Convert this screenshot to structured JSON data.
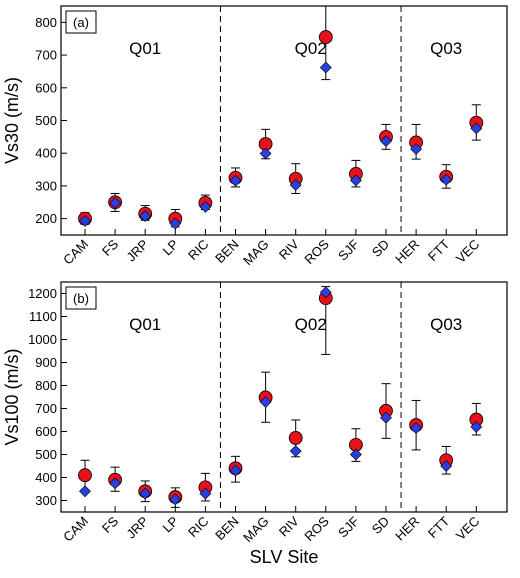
{
  "chart_data": [
    {
      "type": "scatter",
      "panel_label": "(a)",
      "ylabel": "Vs30 (m/s)",
      "xlabel": "",
      "categories": [
        "CAM",
        "FS",
        "JRP",
        "LP",
        "RIC",
        "BEN",
        "MAG",
        "RIV",
        "ROS",
        "SJF",
        "SD",
        "HER",
        "FTT",
        "VEC"
      ],
      "ylim": [
        150,
        850
      ],
      "yticks": [
        200,
        300,
        400,
        500,
        600,
        700,
        800
      ],
      "groups": [
        {
          "label": "Q01",
          "from": 0,
          "to": 4
        },
        {
          "label": "Q02",
          "from": 5,
          "to": 10
        },
        {
          "label": "Q03",
          "from": 11,
          "to": 13
        }
      ],
      "series": [
        {
          "marker": "circle",
          "color": "#e8101a",
          "values": [
            200,
            250,
            215,
            200,
            248,
            325,
            428,
            322,
            755,
            337,
            450,
            433,
            328,
            493
          ],
          "error_low": [
            183,
            222,
            195,
            175,
            228,
            297,
            383,
            277,
            625,
            297,
            412,
            382,
            293,
            440
          ],
          "error_high": [
            218,
            277,
            240,
            228,
            272,
            355,
            473,
            368,
            850,
            378,
            488,
            488,
            365,
            548
          ]
        },
        {
          "marker": "diamond",
          "color": "#2b3fe0",
          "values": [
            193,
            248,
            208,
            185,
            236,
            316,
            399,
            303,
            662,
            317,
            437,
            413,
            319,
            476
          ]
        }
      ]
    },
    {
      "type": "scatter",
      "panel_label": "(b)",
      "ylabel": "Vs100 (m/s)",
      "xlabel": "SLV Site",
      "categories": [
        "CAM",
        "FS",
        "JRP",
        "LP",
        "RIC",
        "BEN",
        "MAG",
        "RIV",
        "ROS",
        "SJF",
        "SD",
        "HER",
        "FTT",
        "VEC"
      ],
      "ylim": [
        250,
        1250
      ],
      "yticks": [
        300,
        400,
        500,
        600,
        700,
        800,
        900,
        1000,
        1100,
        1200
      ],
      "groups": [
        {
          "label": "Q01",
          "from": 0,
          "to": 4
        },
        {
          "label": "Q02",
          "from": 5,
          "to": 10
        },
        {
          "label": "Q03",
          "from": 11,
          "to": 13
        }
      ],
      "series": [
        {
          "marker": "circle",
          "color": "#e8101a",
          "values": [
            410,
            390,
            340,
            315,
            357,
            440,
            748,
            572,
            1180,
            542,
            690,
            628,
            475,
            652
          ],
          "error_low": [
            345,
            340,
            295,
            270,
            298,
            380,
            640,
            490,
            935,
            470,
            570,
            520,
            415,
            585
          ],
          "error_high": [
            475,
            445,
            385,
            355,
            418,
            492,
            858,
            650,
            1230,
            612,
            808,
            735,
            535,
            722
          ]
        },
        {
          "marker": "diamond",
          "color": "#2b3fe0",
          "values": [
            340,
            375,
            330,
            305,
            330,
            430,
            728,
            515,
            1205,
            500,
            660,
            615,
            450,
            620
          ]
        }
      ]
    }
  ]
}
